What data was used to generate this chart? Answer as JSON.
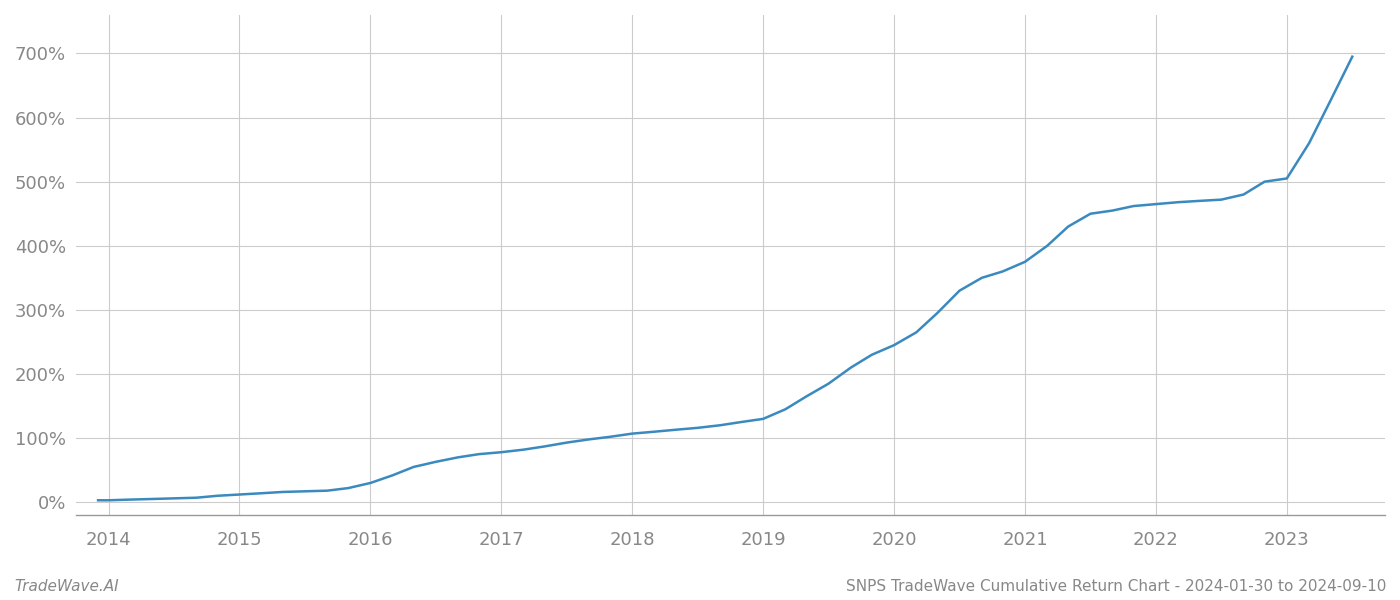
{
  "title": "SNPS TradeWave Cumulative Return Chart - 2024-01-30 to 2024-09-10",
  "watermark": "TradeWave.AI",
  "line_color": "#3a8abf",
  "background_color": "#ffffff",
  "grid_color": "#cccccc",
  "x_years": [
    2014,
    2015,
    2016,
    2017,
    2018,
    2019,
    2020,
    2021,
    2022,
    2023
  ],
  "x_data": [
    2013.92,
    2014.0,
    2014.15,
    2014.33,
    2014.5,
    2014.67,
    2014.83,
    2015.0,
    2015.17,
    2015.33,
    2015.5,
    2015.67,
    2015.83,
    2016.0,
    2016.17,
    2016.33,
    2016.5,
    2016.67,
    2016.83,
    2017.0,
    2017.17,
    2017.33,
    2017.5,
    2017.67,
    2017.83,
    2018.0,
    2018.17,
    2018.33,
    2018.5,
    2018.67,
    2018.83,
    2019.0,
    2019.17,
    2019.33,
    2019.5,
    2019.67,
    2019.83,
    2020.0,
    2020.17,
    2020.33,
    2020.5,
    2020.67,
    2020.83,
    2021.0,
    2021.17,
    2021.33,
    2021.5,
    2021.67,
    2021.83,
    2022.0,
    2022.17,
    2022.33,
    2022.5,
    2022.67,
    2022.83,
    2023.0,
    2023.17,
    2023.33,
    2023.5
  ],
  "y_data": [
    3,
    3,
    4,
    5,
    6,
    7,
    10,
    12,
    14,
    16,
    17,
    18,
    22,
    30,
    42,
    55,
    63,
    70,
    75,
    78,
    82,
    87,
    93,
    98,
    102,
    107,
    110,
    113,
    116,
    120,
    125,
    130,
    145,
    165,
    185,
    210,
    230,
    245,
    265,
    295,
    330,
    350,
    360,
    375,
    400,
    430,
    450,
    455,
    462,
    465,
    468,
    470,
    472,
    480,
    500,
    505,
    560,
    625,
    695
  ],
  "ylim": [
    -20,
    760
  ],
  "yticks": [
    0,
    100,
    200,
    300,
    400,
    500,
    600,
    700
  ],
  "xlim": [
    2013.75,
    2023.75
  ],
  "title_fontsize": 11,
  "tick_fontsize": 13,
  "watermark_fontsize": 11,
  "line_width": 1.8
}
